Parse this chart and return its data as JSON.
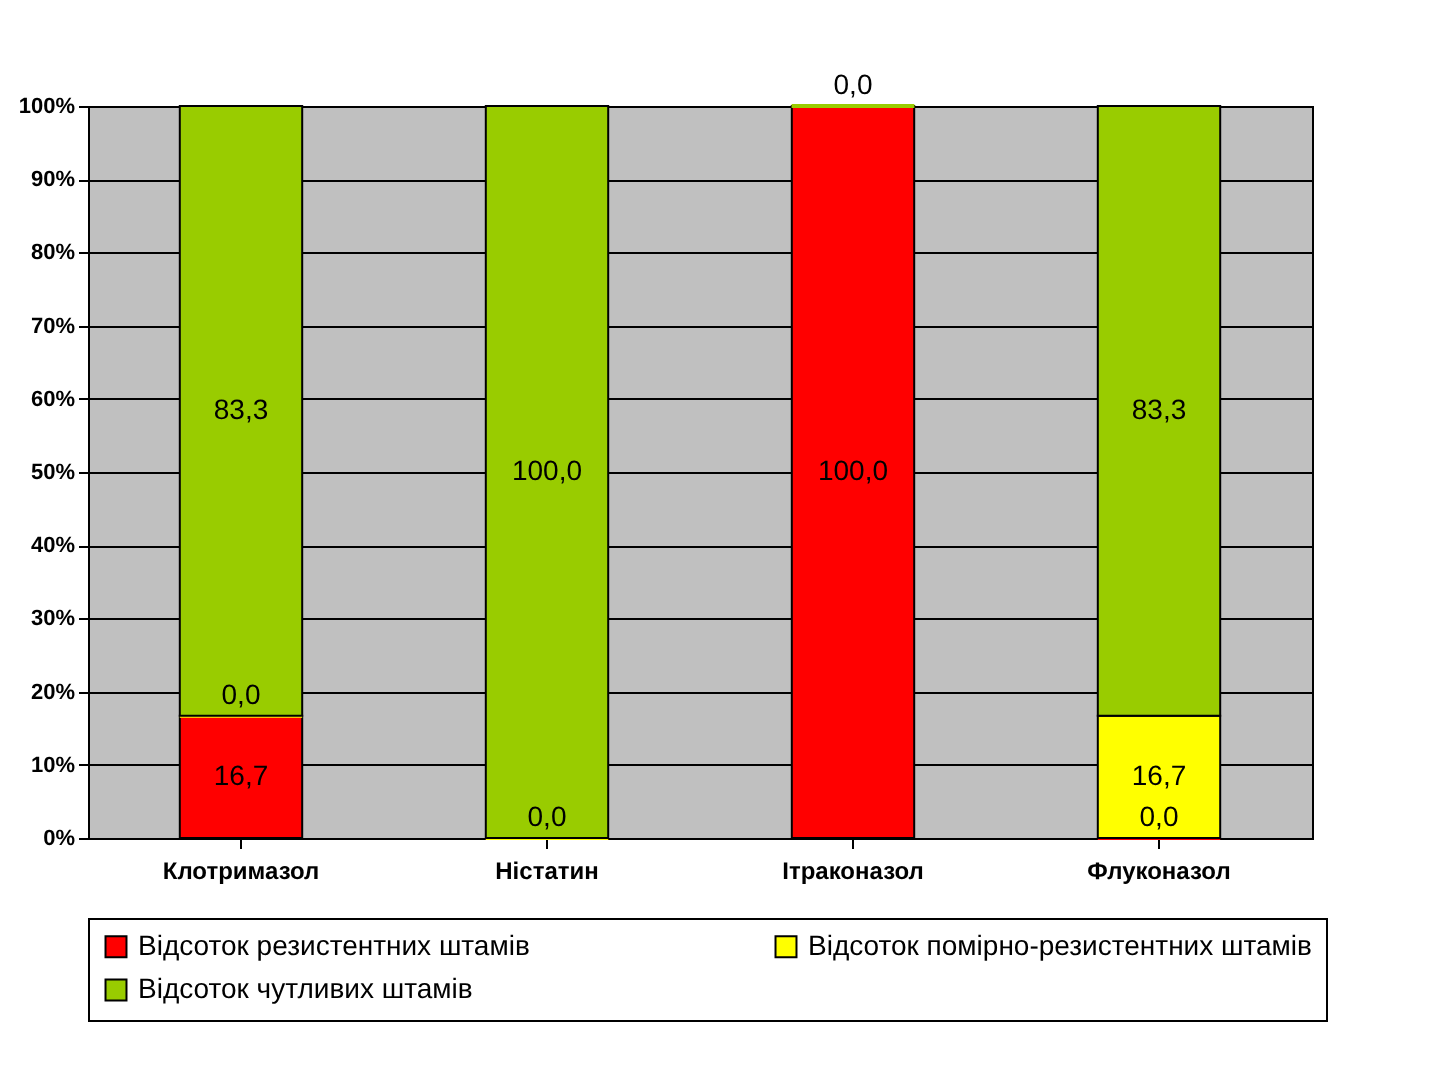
{
  "chart_data": {
    "type": "bar",
    "stacked": true,
    "categories": [
      "Клотримазол",
      "Ністатин",
      "Ітраконазол",
      "Флуконазол"
    ],
    "series": [
      {
        "name": "Відсоток резистентних штамів",
        "color": "#ff0000",
        "values": [
          16.7,
          0.0,
          100.0,
          0.0
        ],
        "value_labels": [
          "16,7",
          "0,0",
          "100,0",
          "0,0"
        ]
      },
      {
        "name": "Відсоток помірно-резистентних штамів",
        "color": "#ffff00",
        "values": [
          0.0,
          0.0,
          0.0,
          16.7
        ],
        "value_labels": [
          "0,0",
          null,
          null,
          "16,7"
        ]
      },
      {
        "name": "Відсоток чутливих штамів",
        "color": "#99cc00",
        "values": [
          83.3,
          100.0,
          0.0,
          83.3
        ],
        "value_labels": [
          "83,3",
          "100,0",
          "0,0",
          "83,3"
        ]
      }
    ],
    "ylim": [
      0,
      100
    ],
    "yticks": [
      {
        "value": 0,
        "label": "0%"
      },
      {
        "value": 10,
        "label": "10%"
      },
      {
        "value": 20,
        "label": "20%"
      },
      {
        "value": 30,
        "label": "30%"
      },
      {
        "value": 40,
        "label": "40%"
      },
      {
        "value": 50,
        "label": "50%"
      },
      {
        "value": 60,
        "label": "60%"
      },
      {
        "value": 70,
        "label": "70%"
      },
      {
        "value": 80,
        "label": "80%"
      },
      {
        "value": 90,
        "label": "90%"
      },
      {
        "value": 100,
        "label": "100%"
      }
    ],
    "grid": "y",
    "legend": "bottom"
  }
}
